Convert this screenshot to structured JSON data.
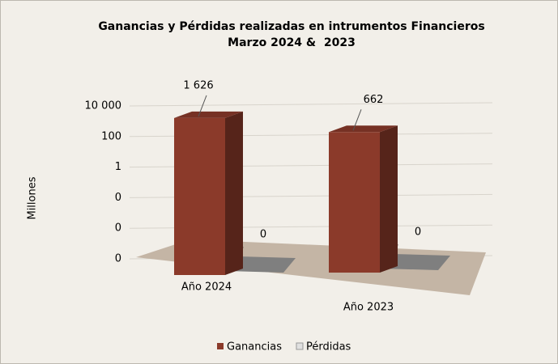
{
  "chart_data": {
    "type": "bar3d",
    "title": "Ganancias y Pérdidas realizadas en intrumentos Financieros",
    "subtitle": "Marzo 2024 &  2023",
    "y_label": "Millones",
    "categories": [
      "Año 2024",
      "Año 2023"
    ],
    "series": [
      {
        "name": "Ganancias",
        "color": "#8b3a2a",
        "values": [
          1626,
          662
        ],
        "value_labels": [
          "1 626",
          "662"
        ]
      },
      {
        "name": "Pérdidas",
        "color": "#7f7f7f",
        "values": [
          0,
          0
        ]
      }
    ],
    "log_scale": true,
    "ylim": [
      1e-06,
      10000
    ],
    "yticks": [
      {
        "value": 10000,
        "label": "10 000"
      },
      100,
      1,
      {
        "value": 0.01,
        "label": "0"
      },
      {
        "value": 0.0001,
        "label": "0"
      },
      {
        "value": 1e-06,
        "label": "0"
      }
    ],
    "grid": true,
    "legend": "bottom"
  }
}
